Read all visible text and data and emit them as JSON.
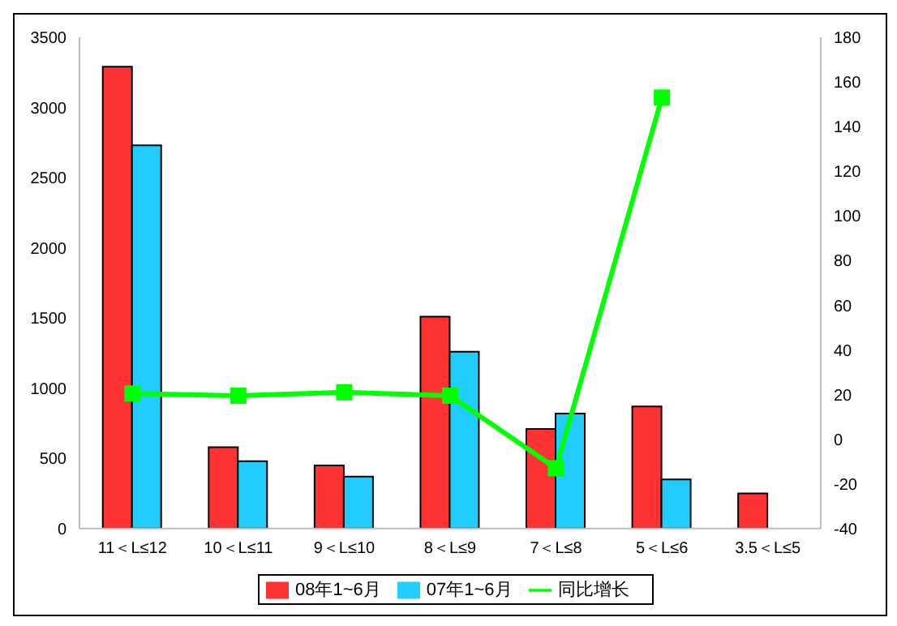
{
  "chart_data": {
    "type": "bar",
    "categories": [
      "11＜L≤12",
      "10＜L≤11",
      "9＜L≤10",
      "8＜L≤9",
      "7＜L≤8",
      "5＜L≤6",
      "3.5＜L≤5"
    ],
    "series": [
      {
        "name": "08年1~6月",
        "color": "#ff3333",
        "values": [
          3290,
          580,
          450,
          1510,
          710,
          870,
          250
        ]
      },
      {
        "name": "07年1~6月",
        "color": "#22ccff",
        "values": [
          2730,
          480,
          370,
          1260,
          820,
          350,
          null
        ]
      },
      {
        "name": "同比增长",
        "color": "#00ff00",
        "type": "line",
        "axis": "y2",
        "values": [
          20.5,
          19.5,
          21,
          19.5,
          -13,
          153,
          null
        ]
      }
    ],
    "ylim": [
      0,
      3500
    ],
    "yticks": [
      0,
      500,
      1000,
      1500,
      2000,
      2500,
      3000,
      3500
    ],
    "y2lim": [
      -40,
      180
    ],
    "y2ticks": [
      -40,
      -20,
      0,
      20,
      40,
      60,
      80,
      100,
      120,
      140,
      160,
      180
    ],
    "legend": "bottom",
    "marker": "square"
  }
}
